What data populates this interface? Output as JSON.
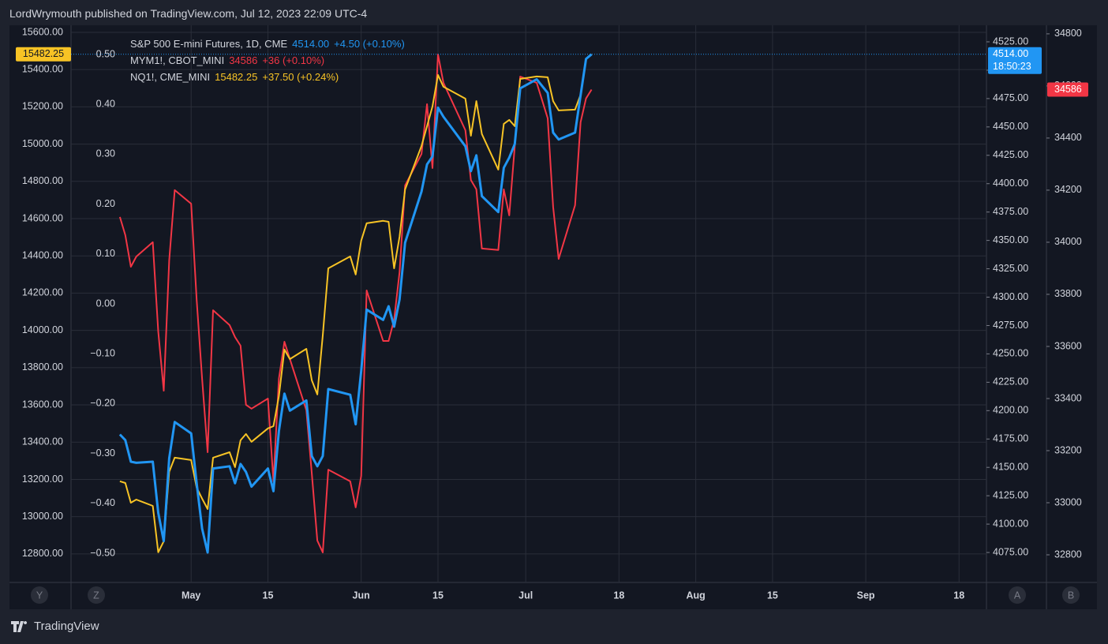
{
  "header": "LordWrymouth published on TradingView.com, Jul 12, 2023 22:09 UTC-4",
  "footer": "TradingView",
  "buttons": [
    "Y",
    "Z",
    "A",
    "B"
  ],
  "chart_data": {
    "type": "line",
    "x": [
      108,
      109,
      110,
      111,
      114,
      115,
      116,
      117,
      118,
      121,
      122,
      123,
      124,
      125,
      128,
      129,
      130,
      131,
      132,
      135,
      136,
      137,
      138,
      139,
      142,
      143,
      144,
      145,
      146,
      150,
      151,
      152,
      153,
      156,
      157,
      158,
      159,
      160,
      163,
      164,
      165,
      166,
      167,
      171,
      172,
      173,
      174,
      177,
      178,
      179,
      180,
      181,
      184,
      186,
      187,
      188,
      191,
      192,
      193,
      194
    ],
    "xlim": [
      99.1,
      266
    ],
    "xticks": [
      {
        "value": 121,
        "label": "May"
      },
      {
        "value": 135,
        "label": "15"
      },
      {
        "value": 152,
        "label": "Jun"
      },
      {
        "value": 166,
        "label": "15"
      },
      {
        "value": 182,
        "label": "Jul"
      },
      {
        "value": 199,
        "label": "18"
      },
      {
        "value": 213,
        "label": "Aug"
      },
      {
        "value": 227,
        "label": "15"
      },
      {
        "value": 244,
        "label": "Sep"
      },
      {
        "value": 261,
        "label": "18"
      }
    ],
    "ylim": [
      12647,
      15638
    ],
    "yticks": [
      {
        "value": 12800,
        "label": "12800.00"
      },
      {
        "value": 13000,
        "label": "13000.00"
      },
      {
        "value": 13200,
        "label": "13200.00"
      },
      {
        "value": 13400,
        "label": "13400.00"
      },
      {
        "value": 13600,
        "label": "13600.00"
      },
      {
        "value": 13800,
        "label": "13800.00"
      },
      {
        "value": 14000,
        "label": "14000.00"
      },
      {
        "value": 14200,
        "label": "14200.00"
      },
      {
        "value": 14400,
        "label": "14400.00"
      },
      {
        "value": 14600,
        "label": "14600.00"
      },
      {
        "value": 14800,
        "label": "14800.00"
      },
      {
        "value": 15000,
        "label": "15000.00"
      },
      {
        "value": 15200,
        "label": "15200.00"
      },
      {
        "value": 15400,
        "label": "15400.00"
      },
      {
        "value": 15600,
        "label": "15600.00"
      }
    ],
    "y2lim": [
      4048.6,
      4539.6
    ],
    "y2ticks": [
      {
        "value": 4075,
        "label": "4075.00"
      },
      {
        "value": 4100,
        "label": "4100.00"
      },
      {
        "value": 4125,
        "label": "4125.00"
      },
      {
        "value": 4150,
        "label": "4150.00"
      },
      {
        "value": 4175,
        "label": "4175.00"
      },
      {
        "value": 4200,
        "label": "4200.00"
      },
      {
        "value": 4225,
        "label": "4225.00"
      },
      {
        "value": 4250,
        "label": "4250.00"
      },
      {
        "value": 4275,
        "label": "4275.00"
      },
      {
        "value": 4300,
        "label": "4300.00"
      },
      {
        "value": 4325,
        "label": "4325.00"
      },
      {
        "value": 4350,
        "label": "4350.00"
      },
      {
        "value": 4375,
        "label": "4375.00"
      },
      {
        "value": 4400,
        "label": "4400.00"
      },
      {
        "value": 4425,
        "label": "4425.00"
      },
      {
        "value": 4450,
        "label": "4450.00"
      },
      {
        "value": 4475,
        "label": "4475.00"
      },
      {
        "value": 4500,
        "label": "4500.00"
      },
      {
        "value": 4525,
        "label": "4525.00"
      }
    ],
    "y3lim": [
      32694,
      34833
    ],
    "y3ticks": [
      32800,
      33000,
      33200,
      33400,
      33600,
      33800,
      34000,
      34200,
      34400,
      34600,
      34800
    ],
    "y4lim": [
      -0.5585,
      0.5585
    ],
    "y4ticks": [
      {
        "value": -0.5,
        "label": "−0.50"
      },
      {
        "value": -0.4,
        "label": "−0.40"
      },
      {
        "value": -0.3,
        "label": "−0.30"
      },
      {
        "value": -0.2,
        "label": "−0.20"
      },
      {
        "value": -0.1,
        "label": "−0.10"
      },
      {
        "value": 0,
        "label": "0.00"
      },
      {
        "value": 0.1,
        "label": "0.10"
      },
      {
        "value": 0.2,
        "label": "0.20"
      },
      {
        "value": 0.3,
        "label": "0.30"
      },
      {
        "value": 0.4,
        "label": "0.40"
      },
      {
        "value": 0.5,
        "label": "0.50"
      }
    ],
    "grid": true,
    "series": [
      {
        "name": "S&P 500 E-mini Futures, 1D, CME",
        "color": "#2196f3",
        "axis": "y2",
        "last_label": "4514.00",
        "change": "+4.50 (+0.10%)",
        "countdown": "18:50:23",
        "values": [
          4179,
          4174,
          4155,
          4154,
          4155,
          4110,
          4085,
          4158,
          4190,
          4180,
          4136,
          4096,
          4075,
          4149,
          4151,
          4136,
          4153,
          4146,
          4133,
          4149,
          4129,
          4182,
          4215,
          4200,
          4209,
          4160,
          4151,
          4160,
          4219,
          4214,
          4188,
          4235,
          4289,
          4280,
          4292,
          4274,
          4298,
          4348,
          4393,
          4417,
          4424,
          4467,
          4459,
          4433,
          4411,
          4425,
          4389,
          4375,
          4414,
          4423,
          4435,
          4484,
          4492,
          4480,
          4445,
          4439,
          4445,
          4478,
          4510,
          4514
        ]
      },
      {
        "name": "MYM1!, CBOT_MINI",
        "color": "#f23645",
        "axis": "y3",
        "last_label": "34586",
        "change": "+36 (+0.10%)",
        "values": [
          34097,
          34027,
          33906,
          33945,
          34000,
          33658,
          33430,
          33930,
          34200,
          34148,
          33779,
          33476,
          33194,
          33739,
          33682,
          33636,
          33603,
          33376,
          33361,
          33400,
          33082,
          33476,
          33618,
          33552,
          33355,
          33112,
          32855,
          32809,
          33127,
          33082,
          32982,
          33103,
          33815,
          33621,
          33621,
          33703,
          33885,
          34218,
          34339,
          34530,
          34285,
          34721,
          34612,
          34430,
          34239,
          34203,
          33976,
          33970,
          34203,
          34103,
          34370,
          34636,
          34612,
          34476,
          34136,
          33936,
          34142,
          34461,
          34552,
          34586
        ]
      },
      {
        "name": "NQ1!, CME_MINI",
        "color": "#f7c325",
        "axis": "y",
        "last_label": "15482.25",
        "change": "+37.50 (+0.24%)",
        "values": [
          13190,
          13181,
          13075,
          13092,
          13058,
          12809,
          12868,
          13241,
          13317,
          13304,
          13156,
          13097,
          13041,
          13317,
          13346,
          13266,
          13410,
          13444,
          13402,
          13474,
          13486,
          13647,
          13897,
          13846,
          13901,
          13732,
          13656,
          13973,
          14333,
          14397,
          14300,
          14482,
          14575,
          14588,
          14583,
          14333,
          14503,
          14757,
          14990,
          15096,
          15202,
          15371,
          15308,
          15244,
          15045,
          15231,
          15054,
          14863,
          15109,
          15130,
          15096,
          15350,
          15363,
          15359,
          15231,
          15181,
          15185,
          15265,
          15456,
          15482.25
        ]
      }
    ]
  }
}
